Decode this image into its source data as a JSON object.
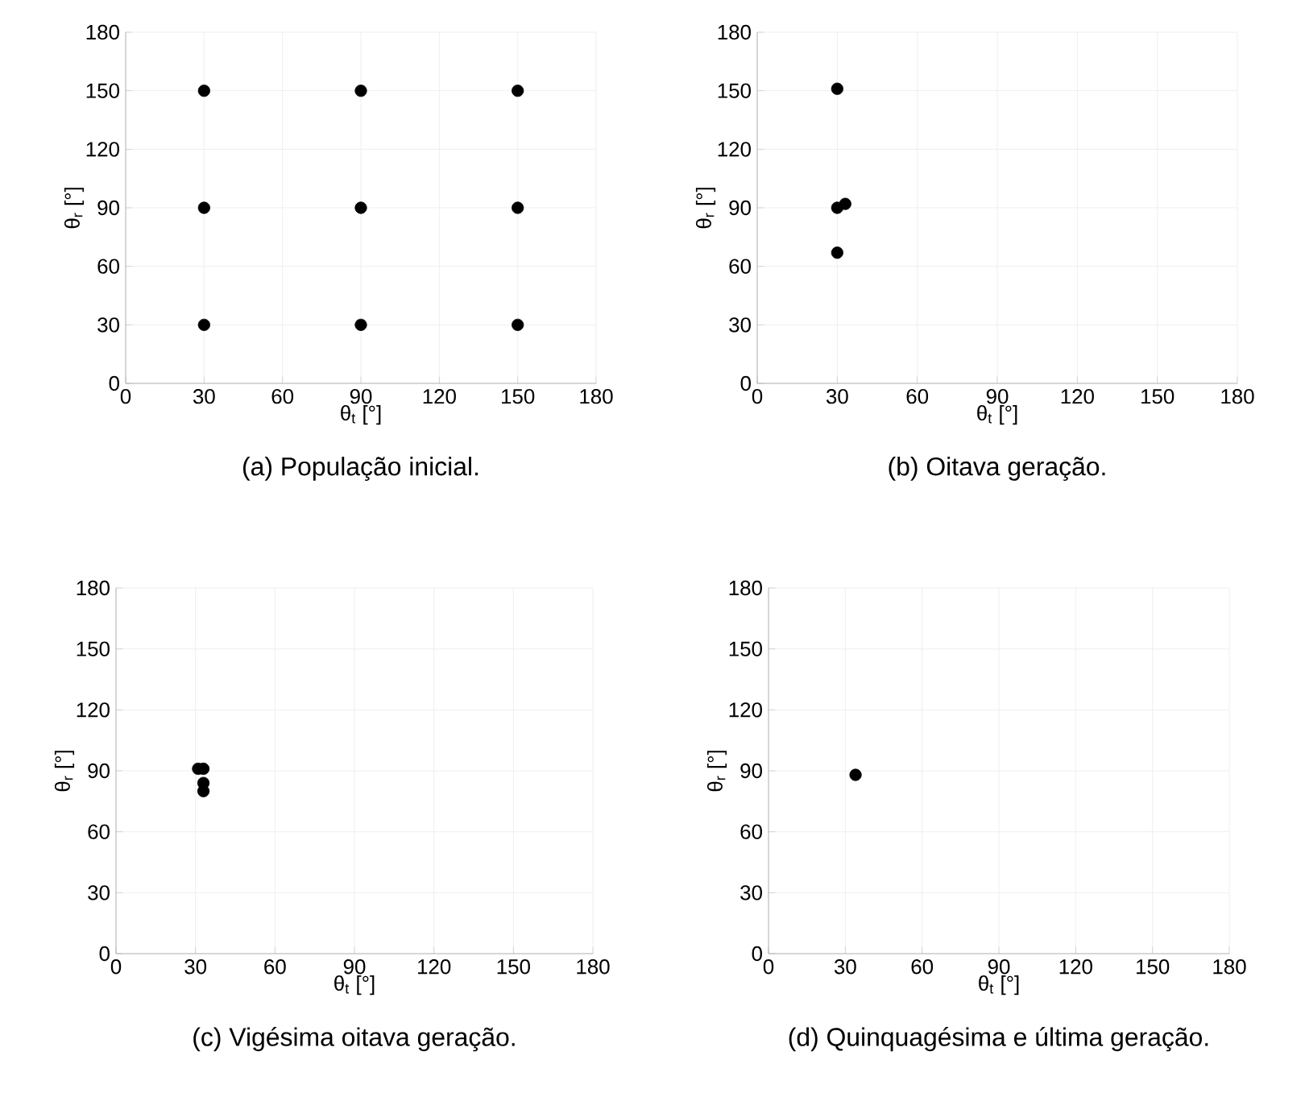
{
  "chart_data": [
    {
      "type": "scatter",
      "title": "(a) População inicial.",
      "xlabel": "θ$_{t}$ [°]",
      "ylabel": "θ$_{r}$ [°]",
      "x": [
        30,
        90,
        150,
        30,
        90,
        150,
        30,
        90,
        150
      ],
      "values": [
        150,
        150,
        150,
        90,
        90,
        90,
        30,
        30,
        30
      ],
      "color": "#000000",
      "marker": "circle",
      "xlim": [
        0,
        180
      ],
      "ylim": [
        0,
        180
      ],
      "xticks": [
        0,
        30,
        60,
        90,
        120,
        150,
        180
      ],
      "yticks": [
        0,
        30,
        60,
        90,
        120,
        150,
        180
      ],
      "grid": true
    },
    {
      "type": "scatter",
      "title": "(b) Oitava geração.",
      "xlabel": "θ$_{t}$ [°]",
      "ylabel": "θ$_{r}$ [°]",
      "x": [
        30,
        30,
        33,
        30
      ],
      "values": [
        151,
        90,
        92,
        67
      ],
      "color": "#000000",
      "marker": "circle",
      "xlim": [
        0,
        180
      ],
      "ylim": [
        0,
        180
      ],
      "xticks": [
        0,
        30,
        60,
        90,
        120,
        150,
        180
      ],
      "yticks": [
        0,
        30,
        60,
        90,
        120,
        150,
        180
      ],
      "grid": true
    },
    {
      "type": "scatter",
      "title": "(c) Vigésima oitava geração.",
      "xlabel": "θ$_{t}$ [°]",
      "ylabel": "θ$_{r}$ [°]",
      "x": [
        31,
        33,
        33,
        33
      ],
      "values": [
        91,
        91,
        84,
        80
      ],
      "color": "#000000",
      "marker": "circle",
      "xlim": [
        0,
        180
      ],
      "ylim": [
        0,
        180
      ],
      "xticks": [
        0,
        30,
        60,
        90,
        120,
        150,
        180
      ],
      "yticks": [
        0,
        30,
        60,
        90,
        120,
        150,
        180
      ],
      "grid": true
    },
    {
      "type": "scatter",
      "title": "(d) Quinquagésima e última geração.",
      "xlabel": "θ$_{t}$ [°]",
      "ylabel": "θ$_{r}$ [°]",
      "x": [
        34
      ],
      "values": [
        88
      ],
      "color": "#000000",
      "marker": "circle",
      "xlim": [
        0,
        180
      ],
      "ylim": [
        0,
        180
      ],
      "xticks": [
        0,
        30,
        60,
        90,
        120,
        150,
        180
      ],
      "yticks": [
        0,
        30,
        60,
        90,
        120,
        150,
        180
      ],
      "grid": true
    }
  ]
}
